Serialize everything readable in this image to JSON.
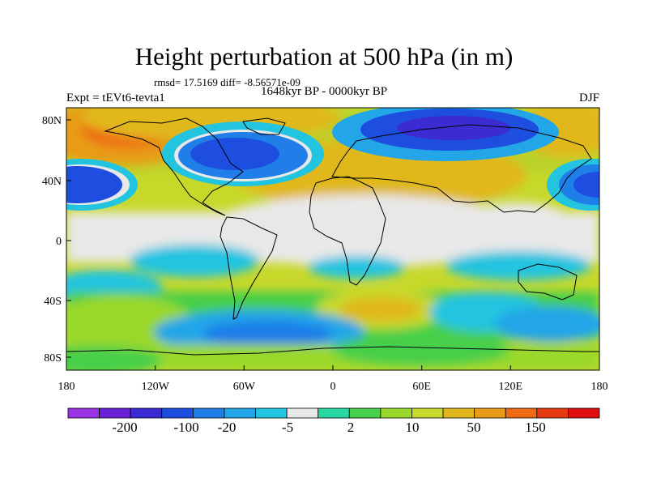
{
  "title": "Height perturbation at 500 hPa (in m)",
  "stats": "rmsd= 17.5169 diff= -8.56571e-09",
  "experiment": "Expt = tEVt6-tevta1",
  "period": "1648kyr BP - 0000kyr BP",
  "season": "DJF",
  "lon_labels": [
    "180",
    "120W",
    "60W",
    "0",
    "60E",
    "120E",
    "180"
  ],
  "lat_labels": [
    "80N",
    "40N",
    "0",
    "40S",
    "80S"
  ],
  "colorbar": {
    "colors": [
      "#9a32e6",
      "#6a1fd8",
      "#3b2bd2",
      "#1e4ee0",
      "#1f7ee8",
      "#22a6e8",
      "#22c4e0",
      "#e8e8e8",
      "#27d6a0",
      "#46cf4a",
      "#9ad82c",
      "#c8d82a",
      "#e0b81e",
      "#e89b18",
      "#ee6a16",
      "#e83a12",
      "#e01010"
    ],
    "tick_labels": [
      "-200",
      "-100",
      "-20",
      "-5",
      "2",
      "10",
      "50",
      "150"
    ]
  }
}
